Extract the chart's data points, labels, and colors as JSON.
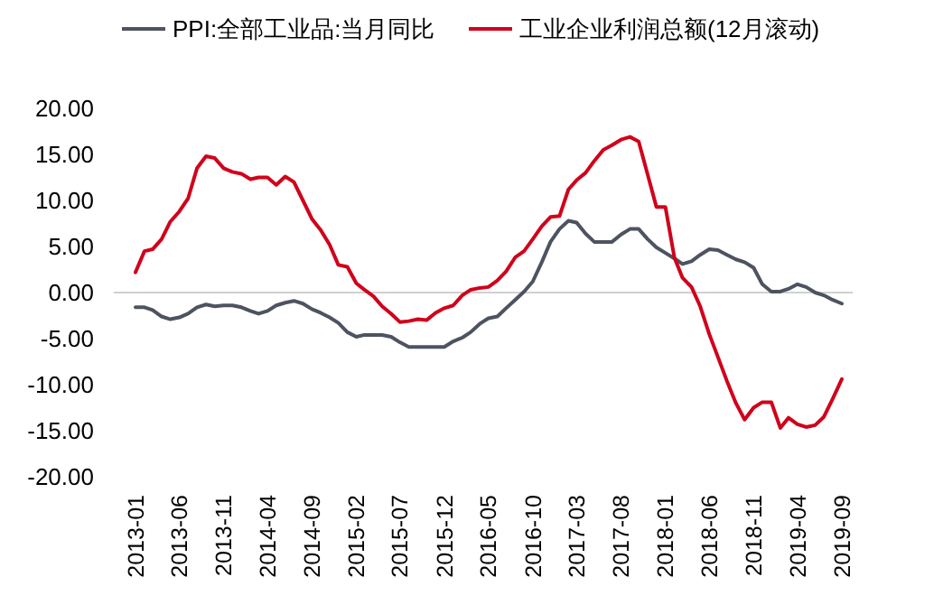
{
  "chart_data": {
    "type": "line",
    "legend": "top",
    "grid": false,
    "ref_lines": [
      {
        "axis": "y",
        "value": 0,
        "color": "#d0d0d0"
      }
    ],
    "marker": "none",
    "line_style": "solid",
    "x": [
      "2013-01",
      "2013-02",
      "2013-03",
      "2013-04",
      "2013-05",
      "2013-06",
      "2013-07",
      "2013-08",
      "2013-09",
      "2013-10",
      "2013-11",
      "2013-12",
      "2014-01",
      "2014-02",
      "2014-03",
      "2014-04",
      "2014-05",
      "2014-06",
      "2014-07",
      "2014-08",
      "2014-09",
      "2014-10",
      "2014-11",
      "2014-12",
      "2015-01",
      "2015-02",
      "2015-03",
      "2015-04",
      "2015-05",
      "2015-06",
      "2015-07",
      "2015-08",
      "2015-09",
      "2015-10",
      "2015-11",
      "2015-12",
      "2016-01",
      "2016-02",
      "2016-03",
      "2016-04",
      "2016-05",
      "2016-06",
      "2016-07",
      "2016-08",
      "2016-09",
      "2016-10",
      "2016-11",
      "2016-12",
      "2017-01",
      "2017-02",
      "2017-03",
      "2017-04",
      "2017-05",
      "2017-06",
      "2017-07",
      "2017-08",
      "2017-09",
      "2017-10",
      "2017-11",
      "2017-12",
      "2018-01",
      "2018-02",
      "2018-03",
      "2018-04",
      "2018-05",
      "2018-06",
      "2018-07",
      "2018-08",
      "2018-09",
      "2018-10",
      "2018-11",
      "2018-12",
      "2019-01",
      "2019-02",
      "2019-03",
      "2019-04",
      "2019-05",
      "2019-06",
      "2019-07",
      "2019-08",
      "2019-09"
    ],
    "series": [
      {
        "name": "PPI:全部工业品:当月同比",
        "color": "#4d5360",
        "values": [
          -1.6,
          -1.6,
          -1.9,
          -2.6,
          -2.9,
          -2.7,
          -2.3,
          -1.6,
          -1.3,
          -1.5,
          -1.4,
          -1.4,
          -1.6,
          -2.0,
          -2.3,
          -2.0,
          -1.4,
          -1.1,
          -0.9,
          -1.2,
          -1.8,
          -2.2,
          -2.7,
          -3.3,
          -4.3,
          -4.8,
          -4.6,
          -4.6,
          -4.6,
          -4.8,
          -5.4,
          -5.9,
          -5.9,
          -5.9,
          -5.9,
          -5.9,
          -5.3,
          -4.9,
          -4.3,
          -3.4,
          -2.8,
          -2.6,
          -1.7,
          -0.8,
          0.1,
          1.2,
          3.3,
          5.5,
          6.9,
          7.8,
          7.6,
          6.4,
          5.5,
          5.5,
          5.5,
          6.3,
          6.9,
          6.9,
          5.8,
          4.9,
          4.3,
          3.7,
          3.1,
          3.4,
          4.1,
          4.7,
          4.6,
          4.1,
          3.6,
          3.3,
          2.7,
          0.9,
          0.1,
          0.1,
          0.4,
          0.9,
          0.6,
          0.0,
          -0.3,
          -0.8,
          -1.2
        ]
      },
      {
        "name": "工业企业利润总额(12月滚动)",
        "color": "#d0021b",
        "values": [
          2.2,
          4.5,
          4.7,
          5.8,
          7.7,
          8.8,
          10.2,
          13.5,
          14.8,
          14.6,
          13.5,
          13.1,
          12.9,
          12.3,
          12.5,
          12.5,
          11.7,
          12.6,
          12.0,
          10.0,
          8.0,
          6.8,
          5.2,
          3.0,
          2.8,
          1.0,
          0.3,
          -0.4,
          -1.5,
          -2.3,
          -3.2,
          -3.1,
          -2.9,
          -3.0,
          -2.2,
          -1.7,
          -1.4,
          -0.3,
          0.3,
          0.5,
          0.6,
          1.3,
          2.3,
          3.8,
          4.5,
          5.8,
          7.2,
          8.2,
          8.3,
          11.2,
          12.2,
          13.0,
          14.3,
          15.5,
          16.0,
          16.6,
          16.9,
          16.4,
          12.8,
          9.3,
          9.3,
          3.8,
          1.6,
          0.6,
          -1.5,
          -4.5,
          -7.0,
          -9.6,
          -12.0,
          -13.8,
          -12.5,
          -11.9,
          -11.9,
          -14.7,
          -13.6,
          -14.3,
          -14.6,
          -14.4,
          -13.5,
          -11.5,
          -9.4
        ]
      }
    ],
    "xlim": [
      "2013-01",
      "2019-09"
    ],
    "xticks": [
      "2013-01",
      "2013-06",
      "2013-11",
      "2014-04",
      "2014-09",
      "2015-02",
      "2015-07",
      "2015-12",
      "2016-05",
      "2016-10",
      "2017-03",
      "2017-08",
      "2018-01",
      "2018-06",
      "2018-11",
      "2019-04",
      "2019-09"
    ],
    "ylim": [
      -20,
      20
    ],
    "yticks": [
      {
        "value": 20,
        "label": "20.00"
      },
      {
        "value": 15,
        "label": "15.00"
      },
      {
        "value": 10,
        "label": "10.00"
      },
      {
        "value": 5,
        "label": "5.00"
      },
      {
        "value": 0,
        "label": "0.00"
      },
      {
        "value": -5,
        "label": "-5.00"
      },
      {
        "value": -10,
        "label": "-10.00"
      },
      {
        "value": -15,
        "label": "-15.00"
      },
      {
        "value": -20,
        "label": "-20.00"
      }
    ]
  }
}
